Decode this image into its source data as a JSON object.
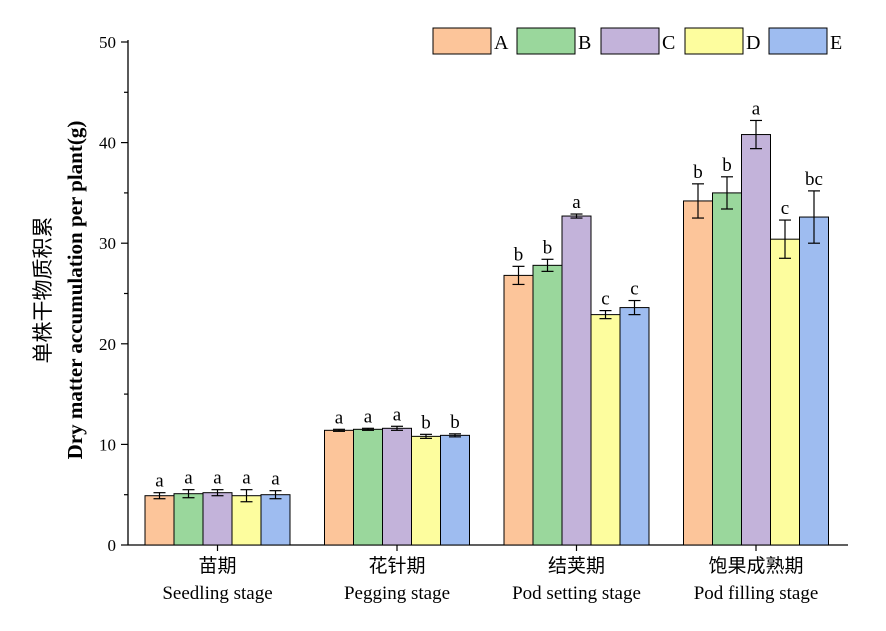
{
  "chart_data": {
    "type": "bar",
    "title": "",
    "ylabel_cn": "单株干物质积累",
    "ylabel_en": "Dry matter accumulation per plant(g)",
    "ylim": [
      0,
      50
    ],
    "yticks": [
      "0",
      "10",
      "20",
      "30",
      "40",
      "50"
    ],
    "grid": false,
    "legend_position": "top-right",
    "categories": [
      {
        "cn": "苗期",
        "en": "Seedling stage"
      },
      {
        "cn": "花针期",
        "en": "Pegging stage"
      },
      {
        "cn": "结荚期",
        "en": "Pod setting stage"
      },
      {
        "cn": "饱果成熟期",
        "en": "Pod filling stage"
      }
    ],
    "series": [
      {
        "name": "A",
        "color": "#fcc59a",
        "values": [
          4.9,
          11.4,
          26.8,
          34.2
        ],
        "errors": [
          0.3,
          0.1,
          0.9,
          1.7
        ],
        "labels": [
          "a",
          "a",
          "b",
          "b"
        ]
      },
      {
        "name": "B",
        "color": "#9ad79c",
        "values": [
          5.1,
          11.5,
          27.8,
          35.0
        ],
        "errors": [
          0.4,
          0.1,
          0.6,
          1.6
        ],
        "labels": [
          "a",
          "a",
          "b",
          "b"
        ]
      },
      {
        "name": "C",
        "color": "#c3b3da",
        "values": [
          5.2,
          11.6,
          32.7,
          40.8
        ],
        "errors": [
          0.3,
          0.2,
          0.2,
          1.4
        ],
        "labels": [
          "a",
          "a",
          "a",
          "a"
        ]
      },
      {
        "name": "D",
        "color": "#fdfd9e",
        "values": [
          4.9,
          10.8,
          22.9,
          30.4
        ],
        "errors": [
          0.6,
          0.2,
          0.4,
          1.9
        ],
        "labels": [
          "a",
          "b",
          "c",
          "c"
        ]
      },
      {
        "name": "E",
        "color": "#9ebcf0",
        "values": [
          5.0,
          10.9,
          23.6,
          32.6
        ],
        "errors": [
          0.4,
          0.15,
          0.7,
          2.6
        ],
        "labels": [
          "a",
          "b",
          "c",
          "bc"
        ]
      }
    ]
  }
}
